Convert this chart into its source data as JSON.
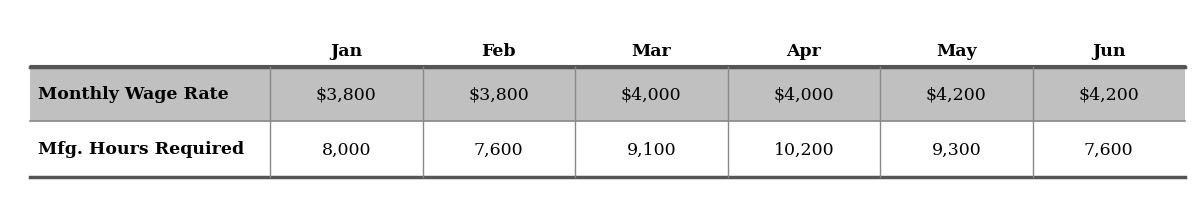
{
  "columns": [
    "",
    "Jan",
    "Feb",
    "Mar",
    "Apr",
    "May",
    "Jun"
  ],
  "row1_label": "Monthly Wage Rate",
  "row2_label": "Mfg. Hours Required",
  "row1_values": [
    "$3,800",
    "$3,800",
    "$4,000",
    "$4,000",
    "$4,200",
    "$4,200"
  ],
  "row2_values": [
    "8,000",
    "7,600",
    "9,100",
    "10,200",
    "9,300",
    "7,600"
  ],
  "bg_color": "#ffffff",
  "row1_bg": "#c0c0c0",
  "row2_bg": "#ffffff",
  "thick_line_color": "#555555",
  "thin_line_color": "#888888",
  "text_color": "#000000",
  "header_fontsize": 12.5,
  "cell_fontsize": 12.5,
  "figwidth": 12.0,
  "figheight": 2.03,
  "dpi": 100
}
